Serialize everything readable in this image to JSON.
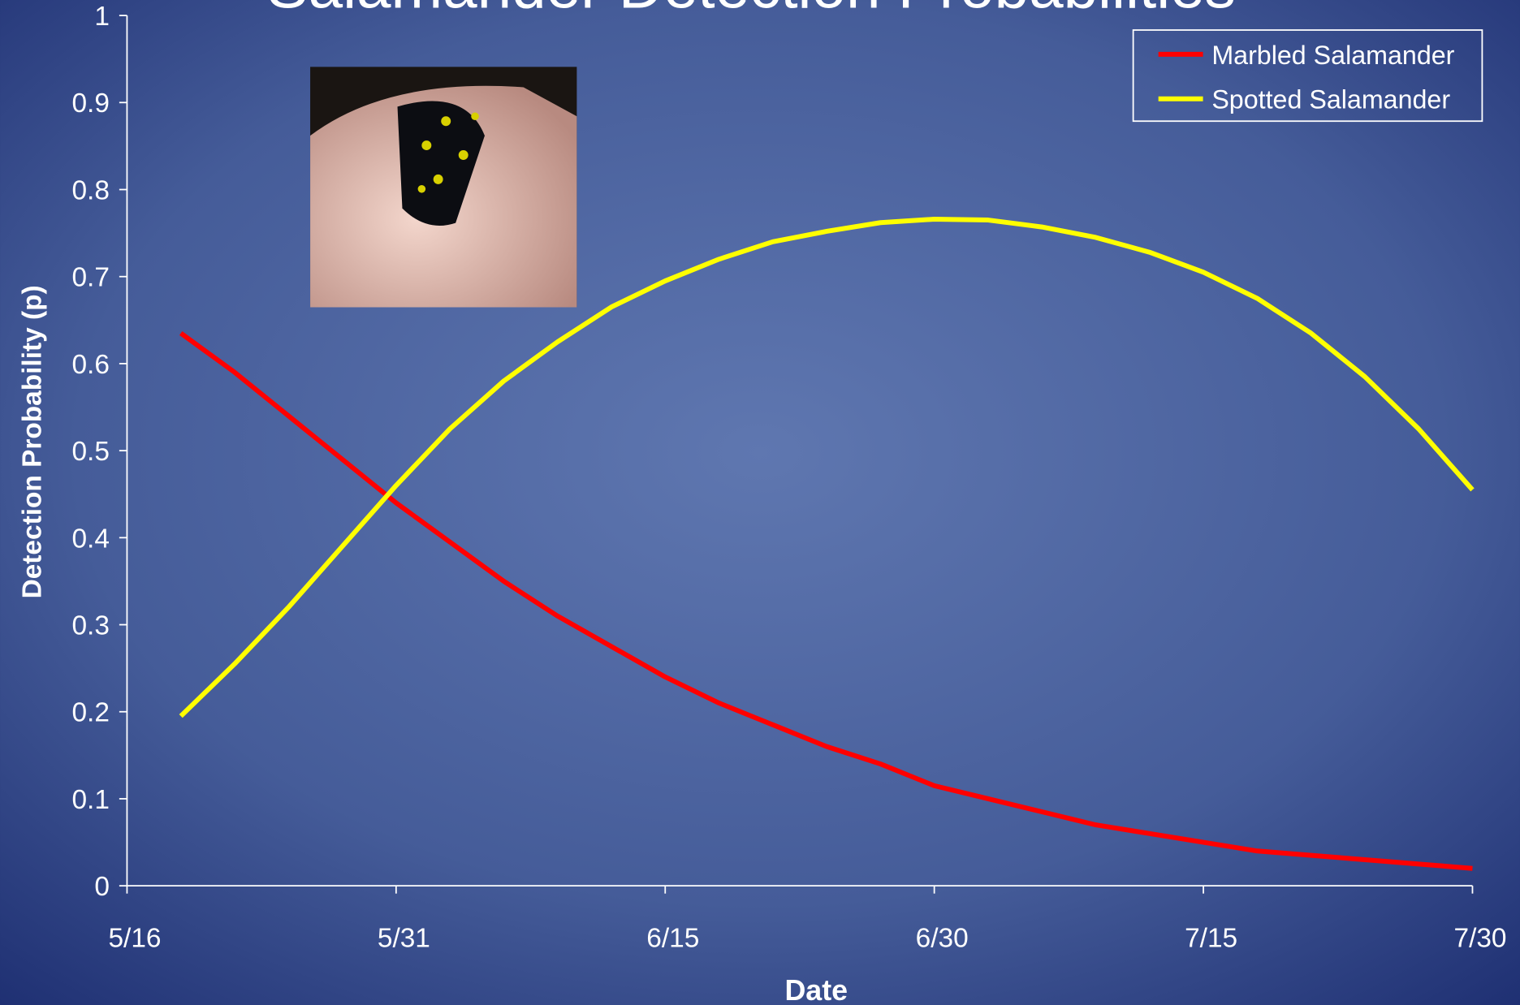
{
  "chart_data": {
    "type": "line",
    "title": "Salamander Detection Probabilities",
    "x_label": "Date",
    "y_label": "Detection Probability (p)",
    "x": [
      "5/19",
      "5/22",
      "5/25",
      "5/28",
      "5/31",
      "6/3",
      "6/6",
      "6/9",
      "6/12",
      "6/15",
      "6/18",
      "6/21",
      "6/24",
      "6/27",
      "6/30",
      "7/3",
      "7/6",
      "7/9",
      "7/12",
      "7/15",
      "7/18",
      "7/21",
      "7/24",
      "7/27",
      "7/30"
    ],
    "series": [
      {
        "name": "Marbled Salamander",
        "color": "#ff0000",
        "values": [
          0.635,
          0.59,
          0.54,
          0.49,
          0.44,
          0.395,
          0.35,
          0.31,
          0.275,
          0.24,
          0.21,
          0.185,
          0.16,
          0.14,
          0.115,
          0.1,
          0.085,
          0.07,
          0.06,
          0.05,
          0.04,
          0.035,
          0.03,
          0.025,
          0.02
        ]
      },
      {
        "name": "Spotted Salamander",
        "color": "#ffff00",
        "values": [
          0.195,
          0.255,
          0.32,
          0.39,
          0.46,
          0.525,
          0.58,
          0.625,
          0.665,
          0.695,
          0.72,
          0.74,
          0.752,
          0.762,
          0.766,
          0.765,
          0.757,
          0.745,
          0.728,
          0.705,
          0.675,
          0.635,
          0.585,
          0.525,
          0.455
        ]
      }
    ],
    "xlim": [
      "5/16",
      "7/30"
    ],
    "xticks": [
      "5/16",
      "5/31",
      "6/15",
      "6/30",
      "7/15",
      "7/30"
    ],
    "ylim": [
      0,
      1
    ],
    "yticks": [
      0,
      0.1,
      0.2,
      0.3,
      0.4,
      0.5,
      0.6,
      0.7,
      0.8,
      0.9,
      1
    ],
    "legend": "upper right"
  }
}
